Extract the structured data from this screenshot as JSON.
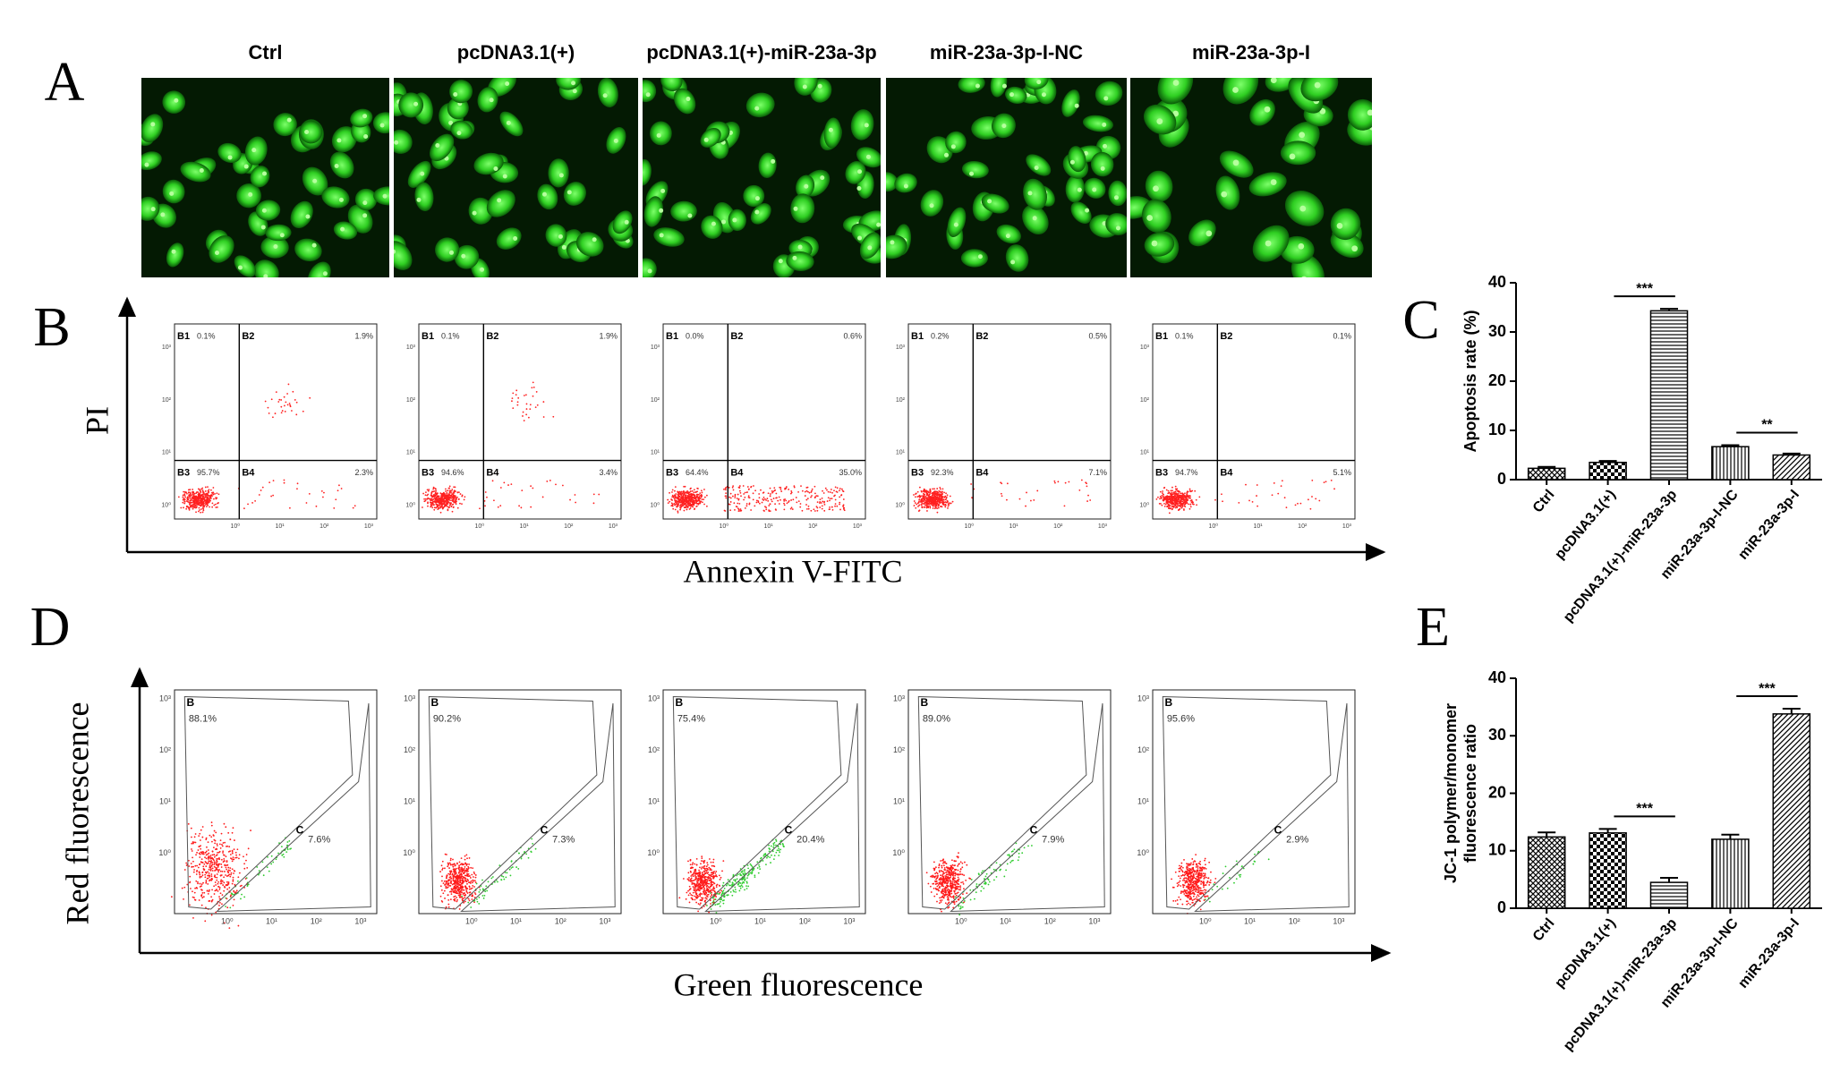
{
  "panel_labels": [
    "A",
    "B",
    "C",
    "D",
    "E"
  ],
  "groups": [
    "Ctrl",
    "pcDNA3.1(+)",
    "pcDNA3.1(+)-miR-23a-3p",
    "miR-23a-3p-I-NC",
    "miR-23a-3p-I"
  ],
  "flow_apoptosis": {
    "y_label": "PI",
    "x_label": "Annexin V-FITC",
    "axis_ticks": [
      "10⁰",
      "10¹",
      "10²",
      "10³"
    ],
    "quadrant_names": [
      "B1",
      "B2",
      "B3",
      "B4"
    ],
    "percentages": [
      [
        "0.1%",
        "1.9%",
        "95.7%",
        "2.3%"
      ],
      [
        "0.1%",
        "1.9%",
        "94.6%",
        "3.4%"
      ],
      [
        "0.0%",
        "0.6%",
        "64.4%",
        "35.0%"
      ],
      [
        "0.2%",
        "0.5%",
        "92.3%",
        "7.1%"
      ],
      [
        "0.1%",
        "0.1%",
        "94.7%",
        "5.1%"
      ]
    ]
  },
  "flow_jc1": {
    "y_label": "Red fluorescence",
    "x_label": "Green fluorescence",
    "axis_ticks": [
      "10⁰",
      "10¹",
      "10²",
      "10³"
    ],
    "gate_names": [
      "B",
      "C"
    ],
    "percentages": [
      [
        "88.1%",
        "7.6%"
      ],
      [
        "90.2%",
        "7.3%"
      ],
      [
        "75.4%",
        "20.4%"
      ],
      [
        "89.0%",
        "7.9%"
      ],
      [
        "95.6%",
        "2.9%"
      ]
    ]
  },
  "chart_data": [
    {
      "type": "bar",
      "y_label": [
        "Apoptosis rate (%)"
      ],
      "categories": [
        "Ctrl",
        "pcDNA3.1(+)",
        "pcDNA3.1(+)-miR-23a-3p",
        "miR-23a-3p-I-NC",
        "miR-23a-3p-I"
      ],
      "values": [
        2.3,
        3.5,
        34.3,
        6.7,
        5.0
      ],
      "errors": [
        0.3,
        0.3,
        0.4,
        0.3,
        0.3
      ],
      "ylim": [
        0,
        40
      ],
      "yticks": [
        0,
        10,
        20,
        30,
        40
      ],
      "significance": [
        {
          "between": [
            "pcDNA3.1(+)",
            "pcDNA3.1(+)-miR-23a-3p"
          ],
          "label": "***"
        },
        {
          "between": [
            "miR-23a-3p-I-NC",
            "miR-23a-3p-I"
          ],
          "label": "**"
        }
      ]
    },
    {
      "type": "bar",
      "y_label": [
        "JC-1 polymer/monomer",
        "fluorescence ratio"
      ],
      "categories": [
        "Ctrl",
        "pcDNA3.1(+)",
        "pcDNA3.1(+)-miR-23a-3p",
        "miR-23a-3p-I-NC",
        "miR-23a-3p-I"
      ],
      "values": [
        12.4,
        13.1,
        4.5,
        12.0,
        33.8
      ],
      "errors": [
        0.8,
        0.7,
        0.8,
        0.8,
        0.9
      ],
      "ylim": [
        0,
        40
      ],
      "yticks": [
        0,
        10,
        20,
        30,
        40
      ],
      "significance": [
        {
          "between": [
            "pcDNA3.1(+)",
            "pcDNA3.1(+)-miR-23a-3p"
          ],
          "label": "***"
        },
        {
          "between": [
            "miR-23a-3p-I-NC",
            "miR-23a-3p-I"
          ],
          "label": "***"
        }
      ]
    }
  ]
}
